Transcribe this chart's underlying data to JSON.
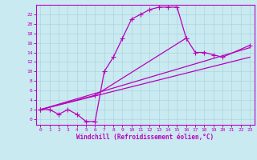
{
  "xlabel": "Windchill (Refroidissement éolien,°C)",
  "background_color": "#c8eaf0",
  "grid_color": "#b0d4e0",
  "line_color": "#bb00bb",
  "xlim": [
    -0.5,
    23.5
  ],
  "ylim": [
    -1.2,
    24
  ],
  "xticks": [
    0,
    1,
    2,
    3,
    4,
    5,
    6,
    7,
    8,
    9,
    10,
    11,
    12,
    13,
    14,
    15,
    16,
    17,
    18,
    19,
    20,
    21,
    22,
    23
  ],
  "yticks": [
    0,
    2,
    4,
    6,
    8,
    10,
    12,
    14,
    16,
    18,
    20,
    22
  ],
  "line1_x": [
    0,
    1,
    2,
    3,
    4,
    5,
    6,
    7,
    8,
    9,
    10,
    11,
    12,
    13,
    14,
    15,
    16
  ],
  "line1_y": [
    2.0,
    2.0,
    1.0,
    2.0,
    1.0,
    -0.5,
    -0.5,
    10.0,
    13.0,
    17.0,
    21.0,
    22.0,
    23.0,
    23.5,
    23.5,
    23.5,
    17.0
  ],
  "line2_x": [
    0,
    6,
    16,
    17,
    18,
    19,
    20,
    23
  ],
  "line2_y": [
    2.0,
    5.0,
    17.0,
    14.0,
    14.0,
    13.5,
    13.0,
    15.5
  ],
  "line3_x": [
    0,
    23
  ],
  "line3_y": [
    2.0,
    15.0
  ],
  "line4_x": [
    0,
    23
  ],
  "line4_y": [
    2.0,
    13.0
  ]
}
